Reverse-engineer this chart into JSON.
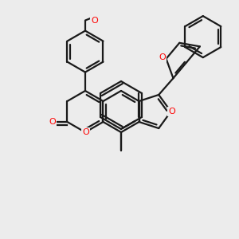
{
  "background_color": "#ececec",
  "bond_color": "#1a1a1a",
  "O_color": "#ff0000",
  "lw": 1.6,
  "figsize": [
    3.0,
    3.0
  ],
  "dpi": 100,
  "xlim": [
    0,
    300
  ],
  "ylim": [
    0,
    300
  ]
}
